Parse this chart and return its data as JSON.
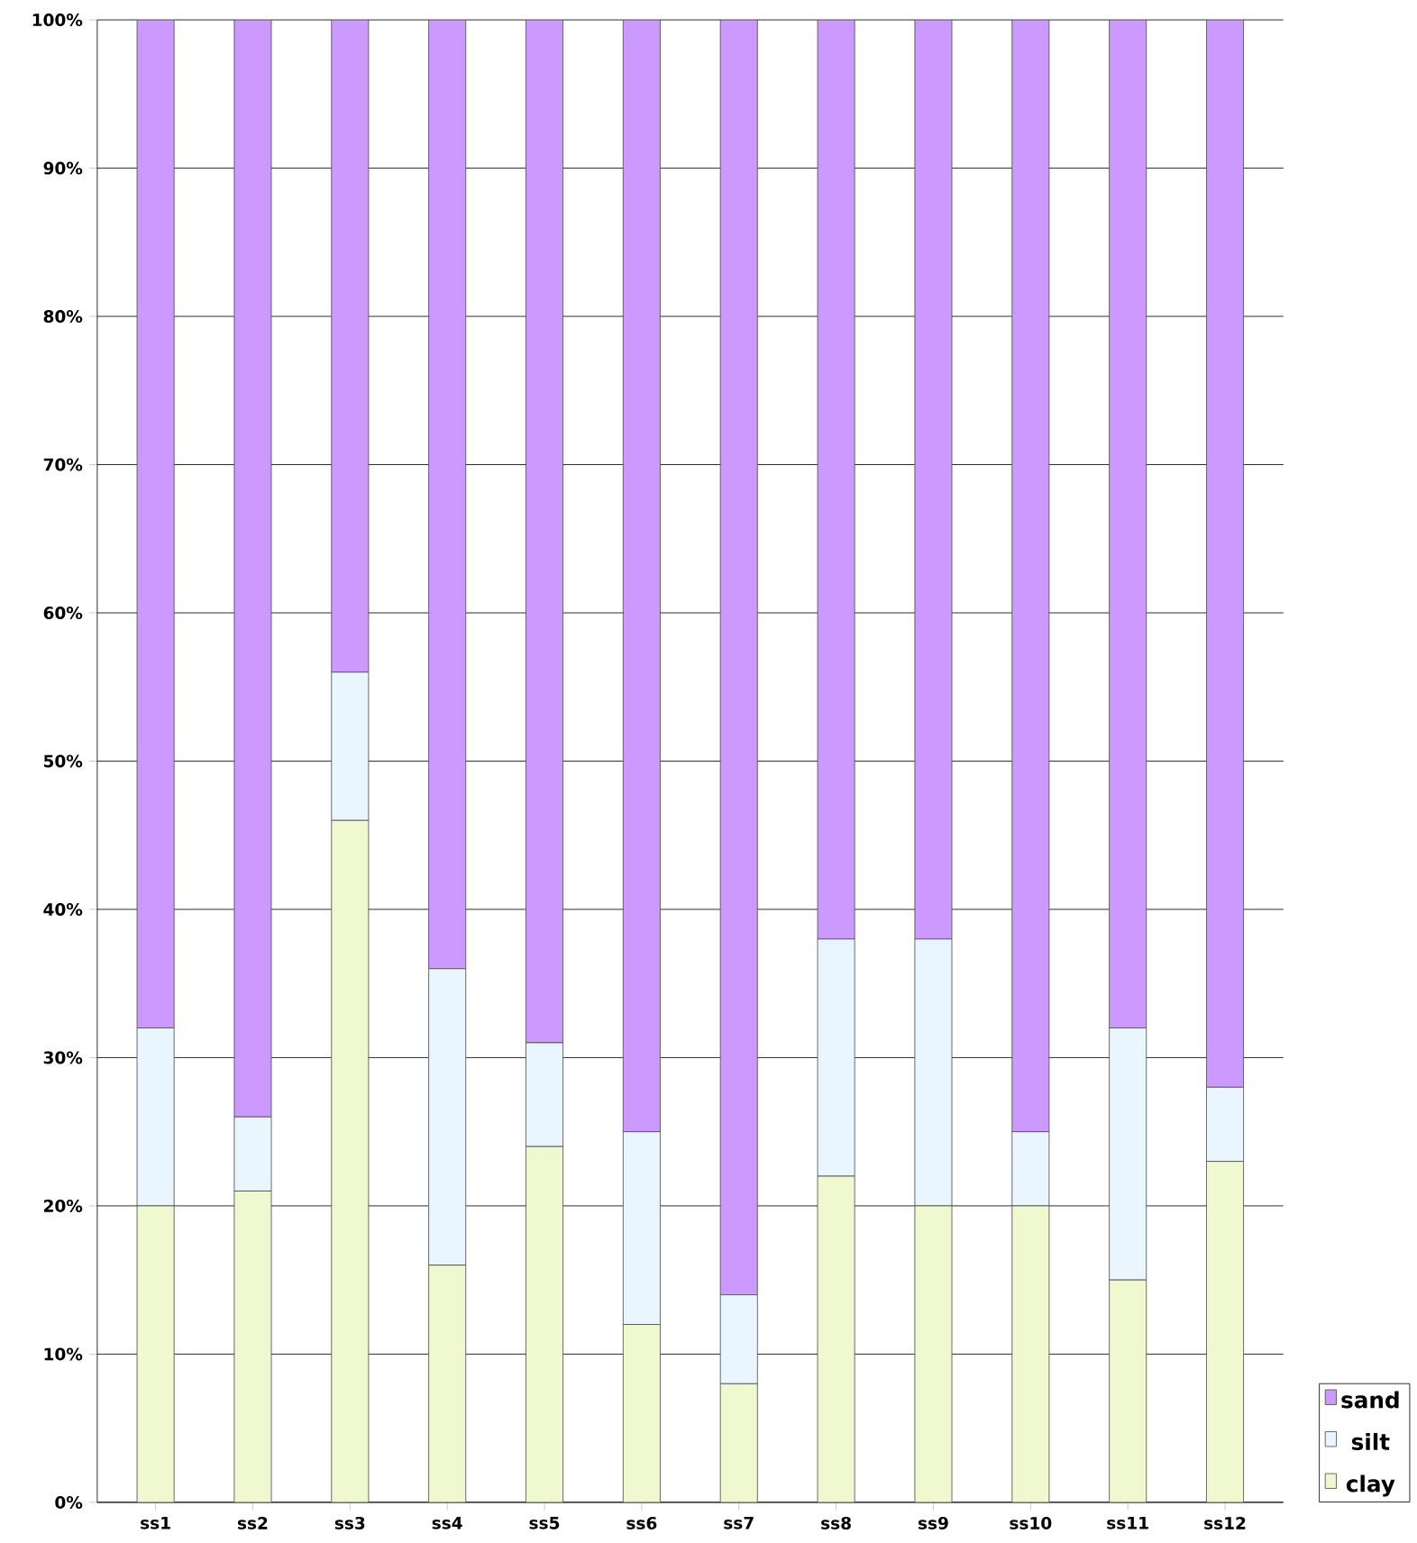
{
  "chart_data": {
    "type": "bar",
    "stacked": true,
    "categories": [
      "ss1",
      "ss2",
      "ss3",
      "ss4",
      "ss5",
      "ss6",
      "ss7",
      "ss8",
      "ss9",
      "ss10",
      "ss11",
      "ss12"
    ],
    "series": [
      {
        "name": "clay",
        "color": "#f0f8d0",
        "values": [
          20,
          21,
          46,
          16,
          24,
          12,
          8,
          22,
          20,
          20,
          15,
          23
        ]
      },
      {
        "name": "silt",
        "color": "#eaf6ff",
        "values": [
          12,
          5,
          10,
          20,
          7,
          13,
          6,
          16,
          18,
          5,
          17,
          5
        ]
      },
      {
        "name": "sand",
        "color": "#cc99ff",
        "values": [
          68,
          74,
          44,
          64,
          69,
          75,
          86,
          62,
          62,
          75,
          68,
          72
        ]
      }
    ],
    "ylim": [
      0,
      100
    ],
    "yticks": [
      {
        "value": 0,
        "label": "0%"
      },
      {
        "value": 10,
        "label": "10%"
      },
      {
        "value": 20,
        "label": "20%"
      },
      {
        "value": 30,
        "label": "30%"
      },
      {
        "value": 40,
        "label": "40%"
      },
      {
        "value": 50,
        "label": "50%"
      },
      {
        "value": 60,
        "label": "60%"
      },
      {
        "value": 70,
        "label": "70%"
      },
      {
        "value": 80,
        "label": "80%"
      },
      {
        "value": 90,
        "label": "90%"
      },
      {
        "value": 100,
        "label": "100%"
      }
    ],
    "grid": "y",
    "legend": "right"
  }
}
